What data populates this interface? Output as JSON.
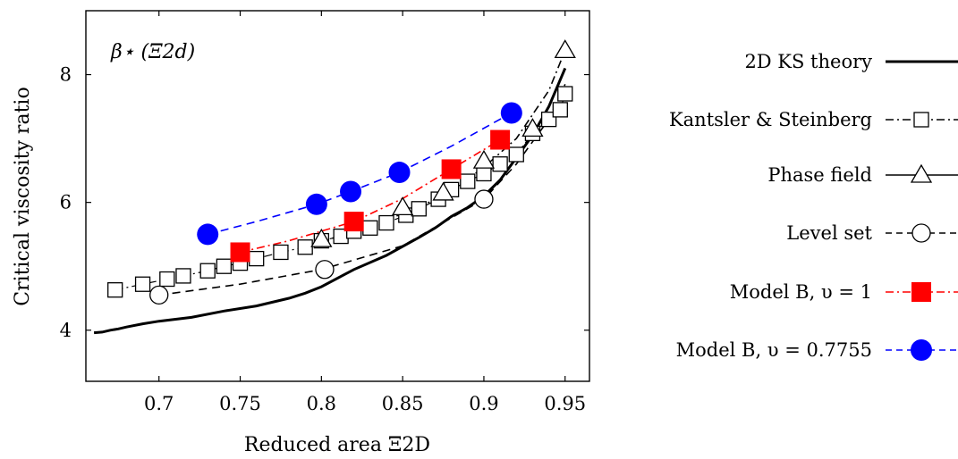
{
  "chart_data": {
    "type": "line",
    "annotation": "β⋆ (Ξ2d)",
    "xlabel": "Reduced area Ξ2D",
    "ylabel": "Critical viscosity ratio",
    "xlim": [
      0.655,
      0.965
    ],
    "ylim": [
      3.2,
      9.0
    ],
    "xticks": [
      0.7,
      0.75,
      0.8,
      0.85,
      0.9,
      0.95
    ],
    "xtick_labels": [
      "0.7",
      "0.75",
      "0.8",
      "0.85",
      "0.9",
      "0.95"
    ],
    "yticks": [
      4,
      6,
      8
    ],
    "ytick_labels": [
      "4",
      "6",
      "8"
    ],
    "grid": false,
    "legend_placement": "right, outside plot",
    "series": [
      {
        "key": "ks",
        "name": "2D KS theory",
        "color": "#000000",
        "line": "solid",
        "marker": "none",
        "x": [
          0.66,
          0.665,
          0.67,
          0.675,
          0.68,
          0.69,
          0.7,
          0.72,
          0.74,
          0.76,
          0.78,
          0.79,
          0.8,
          0.82,
          0.84,
          0.86,
          0.87,
          0.88,
          0.89,
          0.9,
          0.91,
          0.92,
          0.93,
          0.94,
          0.95
        ],
        "y": [
          3.96,
          3.97,
          4.0,
          4.02,
          4.05,
          4.1,
          4.14,
          4.2,
          4.3,
          4.38,
          4.5,
          4.58,
          4.68,
          4.95,
          5.17,
          5.45,
          5.6,
          5.78,
          5.92,
          6.1,
          6.35,
          6.7,
          7.05,
          7.5,
          8.1
        ]
      },
      {
        "key": "kantsler",
        "name": "Kantsler & Steinberg",
        "color": "#000000",
        "line": "dashdot",
        "marker": "square-open",
        "x": [
          0.673,
          0.69,
          0.705,
          0.715,
          0.73,
          0.74,
          0.75,
          0.76,
          0.775,
          0.79,
          0.8,
          0.812,
          0.82,
          0.83,
          0.84,
          0.852,
          0.86,
          0.872,
          0.88,
          0.89,
          0.9,
          0.91,
          0.92,
          0.93,
          0.94,
          0.947,
          0.95
        ],
        "y": [
          4.63,
          4.72,
          4.8,
          4.85,
          4.93,
          5.0,
          5.05,
          5.12,
          5.22,
          5.3,
          5.4,
          5.47,
          5.55,
          5.6,
          5.68,
          5.8,
          5.9,
          6.05,
          6.2,
          6.33,
          6.45,
          6.6,
          6.75,
          7.08,
          7.3,
          7.45,
          7.7
        ]
      },
      {
        "key": "phase",
        "name": "Phase field",
        "color": "#000000",
        "line": "dotted",
        "marker": "triangle-open",
        "x": [
          0.8,
          0.85,
          0.875,
          0.9,
          0.93,
          0.95
        ],
        "y": [
          5.42,
          5.92,
          6.15,
          6.65,
          7.15,
          8.38
        ]
      },
      {
        "key": "level",
        "name": "Level set",
        "color": "#000000",
        "line": "dashed",
        "marker": "circle-open",
        "x": [
          0.7,
          0.802,
          0.9
        ],
        "y": [
          4.55,
          4.95,
          6.05
        ]
      },
      {
        "key": "modelB1",
        "name": "Model B, υ = 1",
        "color": "#ff0000",
        "line": "dashdot",
        "marker": "square-filled",
        "x": [
          0.75,
          0.82,
          0.88,
          0.91
        ],
        "y": [
          5.22,
          5.7,
          6.52,
          6.98
        ]
      },
      {
        "key": "modelB2",
        "name": "Model B, υ = 0.7755",
        "color": "#0000ff",
        "line": "dashed",
        "marker": "circle-filled",
        "x": [
          0.73,
          0.797,
          0.818,
          0.848,
          0.917
        ],
        "y": [
          5.5,
          5.97,
          6.17,
          6.47,
          7.4
        ]
      }
    ],
    "fits": {
      "level": {
        "color": "#000000",
        "line": "dashed",
        "x": [
          0.7,
          0.75,
          0.8,
          0.85,
          0.9,
          0.92,
          0.94,
          0.95
        ],
        "y": [
          4.55,
          4.72,
          4.95,
          5.32,
          6.05,
          6.6,
          7.3,
          7.85
        ]
      },
      "phase": {
        "color": "#000000",
        "line": "dashdot",
        "x": [
          0.8,
          0.85,
          0.875,
          0.9,
          0.92,
          0.94,
          0.95
        ],
        "y": [
          5.38,
          5.82,
          6.1,
          6.55,
          7.0,
          7.75,
          8.38
        ]
      },
      "modelB1": {
        "color": "#ff0000",
        "line": "dashdot",
        "x": [
          0.75,
          0.78,
          0.82,
          0.85,
          0.88,
          0.91
        ],
        "y": [
          5.22,
          5.4,
          5.7,
          6.06,
          6.52,
          6.98
        ]
      },
      "modelB2": {
        "color": "#0000ff",
        "line": "dashed",
        "x": [
          0.73,
          0.76,
          0.797,
          0.818,
          0.848,
          0.88,
          0.917
        ],
        "y": [
          5.5,
          5.7,
          5.97,
          6.17,
          6.47,
          6.88,
          7.4
        ]
      }
    }
  }
}
